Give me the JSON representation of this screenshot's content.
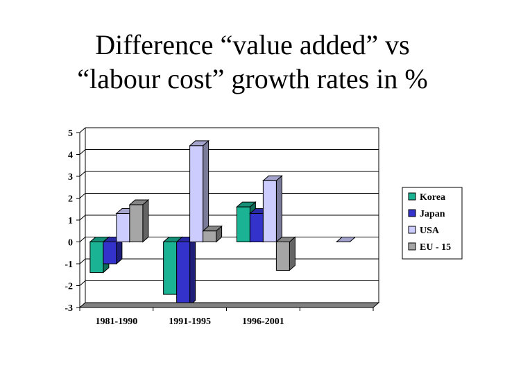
{
  "title_lines": [
    "Difference “value added” vs",
    "“labour cost” growth rates in %"
  ],
  "chart_data": {
    "type": "bar",
    "style": "3d-clustered-column",
    "title": "Difference “value added” vs “labour cost” growth rates in %",
    "categories": [
      "1981-1990",
      "1991-1995",
      "1996-2001",
      ""
    ],
    "series": [
      {
        "name": "Korea",
        "color": "#1ab394",
        "values": [
          -1.4,
          -2.4,
          1.6,
          null
        ]
      },
      {
        "name": "Japan",
        "color": "#3333cc",
        "values": [
          -1.0,
          -2.9,
          1.3,
          null
        ]
      },
      {
        "name": "USA",
        "color": "#ccccff",
        "values": [
          1.3,
          4.4,
          2.8,
          0
        ]
      },
      {
        "name": "EU - 15",
        "color": "#a6a6a6",
        "values": [
          1.7,
          0.5,
          -1.3,
          null
        ]
      }
    ],
    "yticks": [
      "5",
      "4",
      "3",
      "2",
      "1",
      "0",
      "-1",
      "-2",
      "-3"
    ],
    "ylim": [
      -3,
      5
    ],
    "grid": true,
    "legend": "right"
  }
}
